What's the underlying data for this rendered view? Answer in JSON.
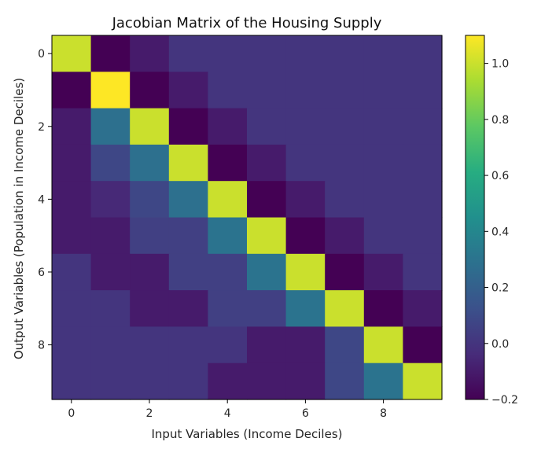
{
  "chart_data": {
    "type": "heatmap",
    "title": "Jacobian Matrix of the Housing Supply",
    "xlabel": "Input Variables (Income Deciles)",
    "ylabel": "Output Variables (Population in Income Deciles)",
    "x_ticks": [
      0,
      2,
      4,
      6,
      8
    ],
    "y_ticks": [
      0,
      2,
      4,
      6,
      8
    ],
    "grid": false,
    "colormap": "viridis",
    "colorbar": {
      "min": -0.2,
      "max": 1.1,
      "ticks": [
        -0.2,
        0.0,
        0.2,
        0.4,
        0.6,
        0.8,
        1.0
      ]
    },
    "matrix": [
      [
        1.0,
        -0.2,
        -0.1,
        0.0,
        0.0,
        0.0,
        0.0,
        0.0,
        0.0,
        0.0
      ],
      [
        -0.2,
        1.1,
        -0.2,
        -0.1,
        0.0,
        0.0,
        0.0,
        0.0,
        0.0,
        0.0
      ],
      [
        -0.1,
        0.28,
        1.0,
        -0.2,
        -0.1,
        0.0,
        0.0,
        0.0,
        0.0,
        0.0
      ],
      [
        -0.1,
        0.08,
        0.28,
        1.0,
        -0.2,
        -0.1,
        0.0,
        0.0,
        0.0,
        0.0
      ],
      [
        -0.1,
        -0.05,
        0.08,
        0.28,
        1.0,
        -0.2,
        -0.1,
        0.0,
        0.0,
        0.0
      ],
      [
        -0.1,
        -0.1,
        0.05,
        0.05,
        0.3,
        1.0,
        -0.2,
        -0.1,
        0.0,
        0.0
      ],
      [
        0.0,
        -0.1,
        -0.1,
        0.05,
        0.05,
        0.3,
        1.0,
        -0.2,
        -0.1,
        0.0
      ],
      [
        0.0,
        0.0,
        -0.1,
        -0.1,
        0.05,
        0.05,
        0.3,
        1.0,
        -0.2,
        -0.1
      ],
      [
        0.0,
        0.0,
        0.0,
        0.0,
        0.0,
        -0.1,
        -0.1,
        0.08,
        1.0,
        -0.2
      ],
      [
        0.0,
        0.0,
        0.0,
        0.0,
        -0.1,
        -0.1,
        -0.1,
        0.08,
        0.3,
        1.0
      ]
    ]
  }
}
